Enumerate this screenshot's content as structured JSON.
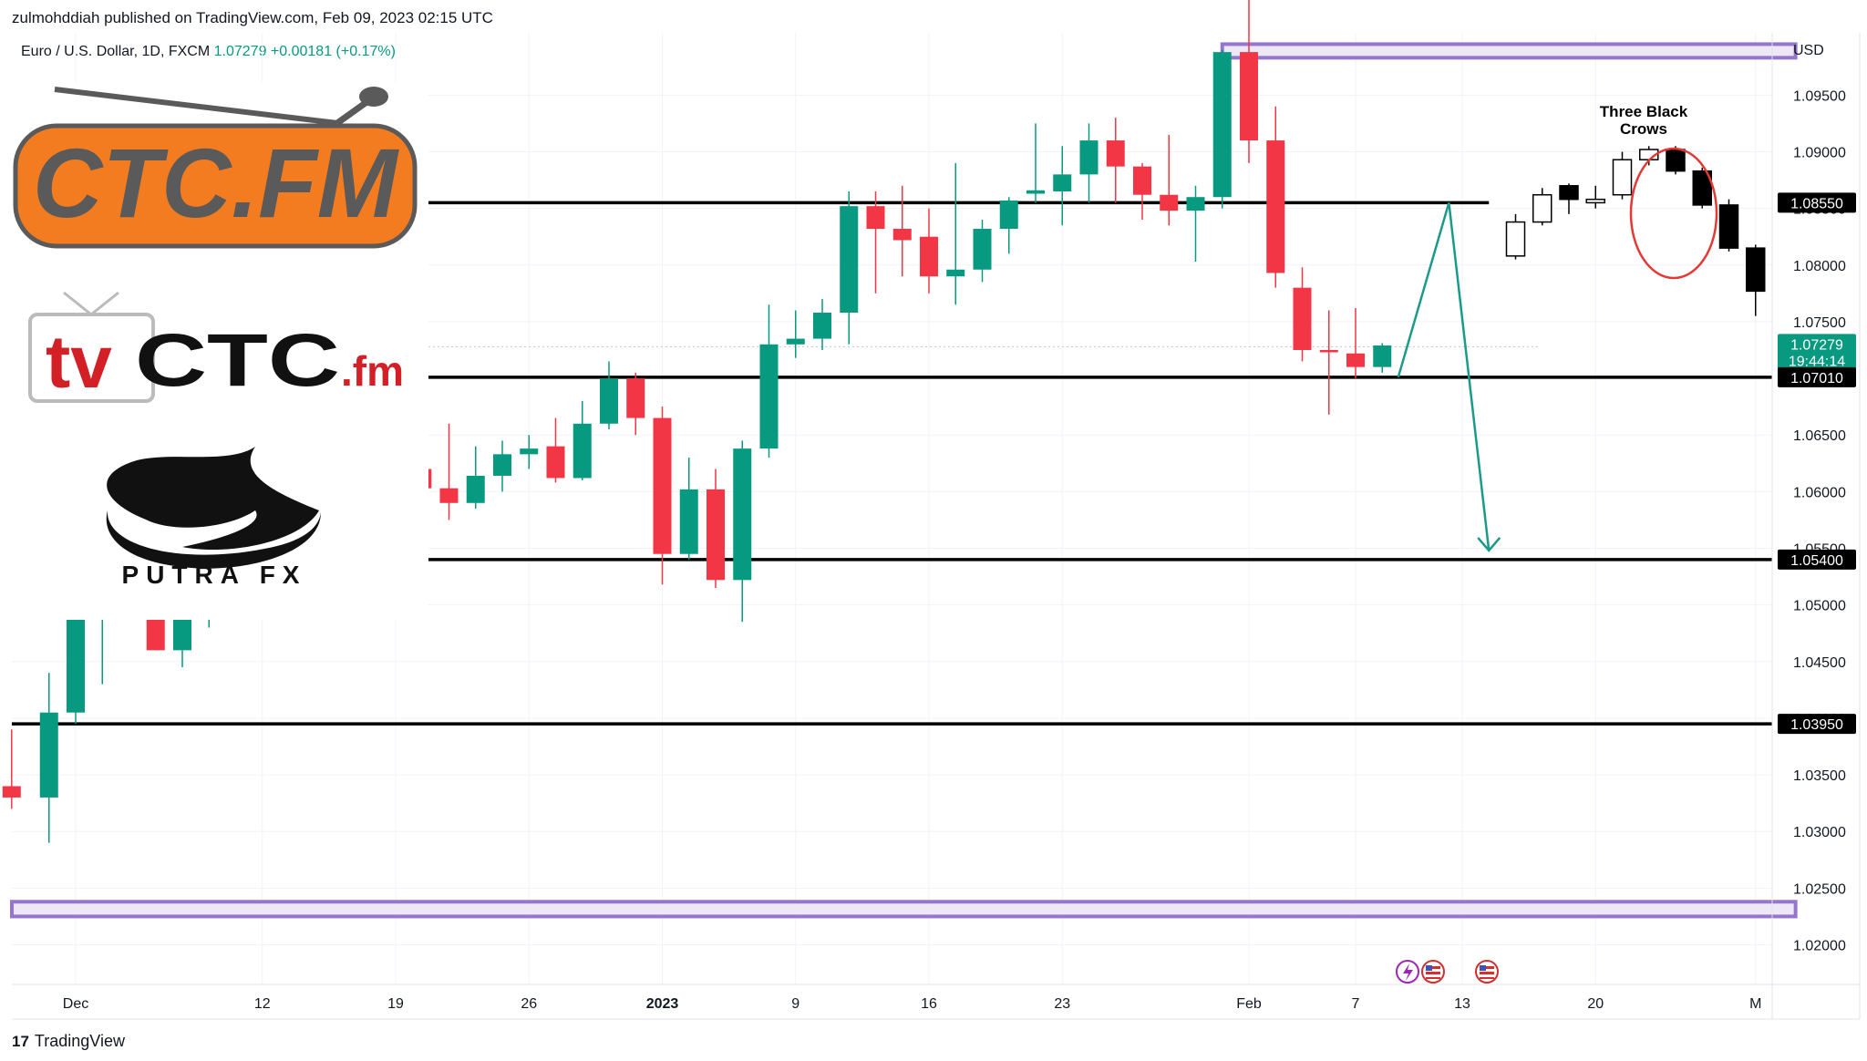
{
  "header": {
    "published": "zulmohddiah published on TradingView.com, Feb 09, 2023 02:15 UTC"
  },
  "symbol": {
    "name": "Euro / U.S. Dollar, 1D, FXCM",
    "price": "1.07279",
    "change": "+0.00181 (+0.17%)"
  },
  "footer": {
    "brand": "TradingView",
    "mark": "17"
  },
  "logos": {
    "ctc": "CTC.FM",
    "tv_a": "tv",
    "tv_b": "CTC",
    "tv_c": ".fm",
    "putra": "PUTRA FX"
  },
  "annotation": {
    "line1": "Three Black",
    "line2": "Crows"
  },
  "colors": {
    "up": "#089981",
    "down": "#f23645",
    "black": "#000000",
    "purple": "#9575cd",
    "teal_arrow": "#1a9a8a"
  },
  "chart_data": {
    "type": "candlestick",
    "currency": "USD",
    "ylim": [
      1.0165,
      1.1005
    ],
    "y_ticks": [
      "1.02000",
      "1.02500",
      "1.03000",
      "1.03500",
      "1.04000",
      "1.04500",
      "1.05000",
      "1.05500",
      "1.06000",
      "1.06500",
      "1.07000",
      "1.07500",
      "1.08000",
      "1.08500",
      "1.09000",
      "1.09500"
    ],
    "x_ticks": [
      {
        "label": "Dec",
        "day": 0
      },
      {
        "label": "12",
        "day": 7
      },
      {
        "label": "19",
        "day": 12
      },
      {
        "label": "26",
        "day": 17
      },
      {
        "label": "2023",
        "day": 22
      },
      {
        "label": "9",
        "day": 27
      },
      {
        "label": "16",
        "day": 32
      },
      {
        "label": "23",
        "day": 37
      },
      {
        "label": "Feb",
        "day": 44
      },
      {
        "label": "7",
        "day": 48
      },
      {
        "label": "13",
        "day": 52
      },
      {
        "label": "20",
        "day": 57
      },
      {
        "label": "M",
        "day": 63
      }
    ],
    "price_labels": [
      {
        "text": "1.08550",
        "price": 1.0855,
        "style": "black"
      },
      {
        "text": "1.07279",
        "sub": "19:44:14",
        "price": 1.07279,
        "style": "green"
      },
      {
        "text": "1.07010",
        "price": 1.0701,
        "style": "black"
      },
      {
        "text": "1.05400",
        "price": 1.054,
        "style": "black"
      },
      {
        "text": "1.03950",
        "price": 1.0395,
        "style": "black"
      }
    ],
    "candles": [
      {
        "day": -2.4,
        "o": 1.034,
        "h": 1.039,
        "l": 1.032,
        "c": 1.033
      },
      {
        "day": -1.0,
        "o": 1.033,
        "h": 1.044,
        "l": 1.029,
        "c": 1.0405
      },
      {
        "day": 0,
        "o": 1.0405,
        "h": 1.05,
        "l": 1.0395,
        "c": 1.049
      },
      {
        "day": 1,
        "o": 1.049,
        "h": 1.052,
        "l": 1.043,
        "c": 1.051
      },
      {
        "day": 2,
        "o": 1.0505,
        "h": 1.0525,
        "l": 1.049,
        "c": 1.05
      },
      {
        "day": 3,
        "o": 1.049,
        "h": 1.052,
        "l": 1.0465,
        "c": 1.046
      },
      {
        "day": 4,
        "o": 1.046,
        "h": 1.05,
        "l": 1.0445,
        "c": 1.049
      },
      {
        "day": 5,
        "o": 1.0495,
        "h": 1.051,
        "l": 1.048,
        "c": 1.05
      },
      {
        "day": 12,
        "o": 1.061,
        "h": 1.0625,
        "l": 1.0598,
        "c": 1.062
      },
      {
        "day": 13,
        "o": 1.062,
        "h": 1.0645,
        "l": 1.059,
        "c": 1.0603
      },
      {
        "day": 14,
        "o": 1.0603,
        "h": 1.066,
        "l": 1.0575,
        "c": 1.059
      },
      {
        "day": 15,
        "o": 1.059,
        "h": 1.064,
        "l": 1.0585,
        "c": 1.0614
      },
      {
        "day": 16,
        "o": 1.0614,
        "h": 1.0645,
        "l": 1.06,
        "c": 1.0633
      },
      {
        "day": 17,
        "o": 1.0633,
        "h": 1.065,
        "l": 1.062,
        "c": 1.0638
      },
      {
        "day": 18,
        "o": 1.064,
        "h": 1.0665,
        "l": 1.0608,
        "c": 1.0612
      },
      {
        "day": 19,
        "o": 1.0612,
        "h": 1.068,
        "l": 1.061,
        "c": 1.066
      },
      {
        "day": 20,
        "o": 1.066,
        "h": 1.0715,
        "l": 1.0655,
        "c": 1.07
      },
      {
        "day": 21,
        "o": 1.07,
        "h": 1.0705,
        "l": 1.065,
        "c": 1.0665
      },
      {
        "day": 22,
        "o": 1.0665,
        "h": 1.0675,
        "l": 1.0518,
        "c": 1.0545
      },
      {
        "day": 23,
        "o": 1.0545,
        "h": 1.063,
        "l": 1.054,
        "c": 1.0602
      },
      {
        "day": 24,
        "o": 1.0602,
        "h": 1.062,
        "l": 1.0515,
        "c": 1.0522
      },
      {
        "day": 25,
        "o": 1.0522,
        "h": 1.0645,
        "l": 1.0485,
        "c": 1.0638
      },
      {
        "day": 26,
        "o": 1.0638,
        "h": 1.0765,
        "l": 1.063,
        "c": 1.073
      },
      {
        "day": 27,
        "o": 1.073,
        "h": 1.076,
        "l": 1.0718,
        "c": 1.0735
      },
      {
        "day": 28,
        "o": 1.0735,
        "h": 1.077,
        "l": 1.0725,
        "c": 1.0758
      },
      {
        "day": 29,
        "o": 1.0758,
        "h": 1.0865,
        "l": 1.073,
        "c": 1.0852
      },
      {
        "day": 30,
        "o": 1.0852,
        "h": 1.0865,
        "l": 1.0775,
        "c": 1.0832
      },
      {
        "day": 31,
        "o": 1.0832,
        "h": 1.087,
        "l": 1.079,
        "c": 1.0822
      },
      {
        "day": 32,
        "o": 1.0825,
        "h": 1.085,
        "l": 1.0775,
        "c": 1.079
      },
      {
        "day": 33,
        "o": 1.079,
        "h": 1.089,
        "l": 1.0765,
        "c": 1.0796
      },
      {
        "day": 34,
        "o": 1.0796,
        "h": 1.084,
        "l": 1.0785,
        "c": 1.0832
      },
      {
        "day": 35,
        "o": 1.0832,
        "h": 1.086,
        "l": 1.081,
        "c": 1.0857
      },
      {
        "day": 36,
        "o": 1.0863,
        "h": 1.0925,
        "l": 1.0855,
        "c": 1.0866
      },
      {
        "day": 37,
        "o": 1.0865,
        "h": 1.0905,
        "l": 1.0835,
        "c": 1.088
      },
      {
        "day": 38,
        "o": 1.088,
        "h": 1.0925,
        "l": 1.0855,
        "c": 1.091
      },
      {
        "day": 39,
        "o": 1.091,
        "h": 1.093,
        "l": 1.0855,
        "c": 1.0887
      },
      {
        "day": 40,
        "o": 1.0887,
        "h": 1.089,
        "l": 1.084,
        "c": 1.0862
      },
      {
        "day": 41,
        "o": 1.0862,
        "h": 1.0915,
        "l": 1.0835,
        "c": 1.0848
      },
      {
        "day": 42,
        "o": 1.0848,
        "h": 1.087,
        "l": 1.0803,
        "c": 1.086
      },
      {
        "day": 43,
        "o": 1.086,
        "h": 1.099,
        "l": 1.085,
        "c": 1.0988
      },
      {
        "day": 44,
        "o": 1.0988,
        "h": 1.1035,
        "l": 1.089,
        "c": 1.091
      },
      {
        "day": 45,
        "o": 1.091,
        "h": 1.094,
        "l": 1.078,
        "c": 1.0793
      },
      {
        "day": 46,
        "o": 1.078,
        "h": 1.0798,
        "l": 1.0715,
        "c": 1.0725
      },
      {
        "day": 47,
        "o": 1.0725,
        "h": 1.076,
        "l": 1.0668,
        "c": 1.0723
      },
      {
        "day": 48,
        "o": 1.0722,
        "h": 1.0762,
        "l": 1.07,
        "c": 1.071
      },
      {
        "day": 49,
        "o": 1.071,
        "h": 1.0731,
        "l": 1.0705,
        "c": 1.0729
      }
    ],
    "projection_candles": [
      {
        "day": 54,
        "o": 1.0808,
        "h": 1.0845,
        "l": 1.0805,
        "c": 1.0838,
        "fill": "hollow"
      },
      {
        "day": 55,
        "o": 1.0838,
        "h": 1.0868,
        "l": 1.0835,
        "c": 1.0862,
        "fill": "hollow"
      },
      {
        "day": 56,
        "o": 1.087,
        "h": 1.0872,
        "l": 1.0845,
        "c": 1.0858,
        "fill": "solid"
      },
      {
        "day": 57,
        "o": 1.0855,
        "h": 1.087,
        "l": 1.085,
        "c": 1.0858,
        "fill": "hollow"
      },
      {
        "day": 58,
        "o": 1.0862,
        "h": 1.09,
        "l": 1.0858,
        "c": 1.0893,
        "fill": "hollow"
      },
      {
        "day": 59,
        "o": 1.0893,
        "h": 1.0905,
        "l": 1.0888,
        "c": 1.0902,
        "fill": "hollow"
      },
      {
        "day": 60,
        "o": 1.0902,
        "h": 1.0905,
        "l": 1.088,
        "c": 1.0883,
        "fill": "solid"
      },
      {
        "day": 61,
        "o": 1.0883,
        "h": 1.0886,
        "l": 1.085,
        "c": 1.0853,
        "fill": "solid"
      },
      {
        "day": 62,
        "o": 1.0853,
        "h": 1.0858,
        "l": 1.0812,
        "c": 1.0815,
        "fill": "solid"
      },
      {
        "day": 63,
        "o": 1.0815,
        "h": 1.0818,
        "l": 1.0755,
        "c": 1.0777,
        "fill": "solid"
      }
    ],
    "levels": [
      {
        "price": 1.0855,
        "from_day": 13,
        "to_day": 53
      },
      {
        "price": 1.0701,
        "from_day": 13,
        "to_day": 64.5
      },
      {
        "price": 1.054,
        "from_day": 13,
        "to_day": 64.5
      },
      {
        "price": 1.0395,
        "from_day": -3,
        "to_day": 64.5
      }
    ],
    "zones": [
      {
        "top": 1.0995,
        "bottom": 1.0983,
        "from_day": 43,
        "to_day": 64.5
      },
      {
        "top": 1.0238,
        "bottom": 1.0225,
        "from_day": -3,
        "to_day": 64.5
      }
    ],
    "current_price": 1.07279,
    "projection_path": [
      [
        49.6,
        1.0701
      ],
      [
        51.5,
        1.0855
      ],
      [
        53.0,
        1.0548
      ]
    ]
  }
}
